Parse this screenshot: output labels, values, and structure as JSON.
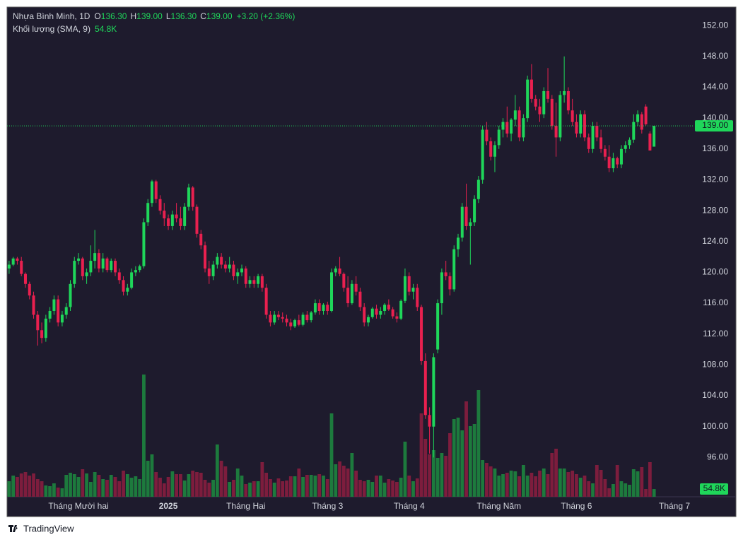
{
  "chart_data": {
    "type": "candlestick",
    "title": "Nhựa Bình Minh, 1D",
    "ohlc_legend": [
      {
        "key": "O",
        "value": 136.3,
        "label": "136.30"
      },
      {
        "key": "H",
        "value": 139.0,
        "label": "139.00"
      },
      {
        "key": "L",
        "value": 136.3,
        "label": "136.30"
      },
      {
        "key": "C",
        "value": 139.0,
        "label": "139.00"
      }
    ],
    "change": {
      "value": 3.2,
      "percent": 2.36,
      "label": "+3.20 (+2.36%)"
    },
    "volume_legend": {
      "name": "Khối lượng (SMA, 9)",
      "value": 54800,
      "label": "54.8K"
    },
    "last_price": {
      "value": 139.0,
      "label": "139.00"
    },
    "up_color": "#1fd65a",
    "down_color": "#e9204f",
    "volume_up_color": "#1d7a3d",
    "volume_down_color": "#7d1d3d",
    "grid": false,
    "xlim": [
      -0.5,
      167.5
    ],
    "xticks": [
      {
        "value": 17,
        "label": "Tháng Mười hai"
      },
      {
        "value": 39,
        "label": "2025"
      },
      {
        "value": 58,
        "label": "Tháng Hai"
      },
      {
        "value": 78,
        "label": "Tháng 3"
      },
      {
        "value": 98,
        "label": "Tháng 4"
      },
      {
        "value": 120,
        "label": "Tháng Năm"
      },
      {
        "value": 139,
        "label": "Tháng 6"
      },
      {
        "value": 163,
        "label": "Tháng 7"
      }
    ],
    "ylim": [
      90.9,
      154.4
    ],
    "yticks": [
      {
        "value": 96,
        "label": "96.00"
      },
      {
        "value": 100,
        "label": "100.00"
      },
      {
        "value": 104,
        "label": "104.00"
      },
      {
        "value": 108,
        "label": "108.00"
      },
      {
        "value": 112,
        "label": "112.00"
      },
      {
        "value": 116,
        "label": "116.00"
      },
      {
        "value": 120,
        "label": "120.00"
      },
      {
        "value": 124,
        "label": "124.00"
      },
      {
        "value": 128,
        "label": "128.00"
      },
      {
        "value": 132,
        "label": "132.00"
      },
      {
        "value": 136,
        "label": "136.00"
      },
      {
        "value": 140,
        "label": "140.00"
      },
      {
        "value": 144,
        "label": "144.00"
      },
      {
        "value": 148,
        "label": "148.00"
      },
      {
        "value": 152,
        "label": "152.00"
      }
    ],
    "y2lim": [
      0,
      1000000
    ],
    "ohlc": [
      [
        120.5,
        121.5,
        119.8,
        121.0
      ],
      [
        121.0,
        122.0,
        120.8,
        121.8
      ],
      [
        121.8,
        122.0,
        121.0,
        121.5
      ],
      [
        121.5,
        122.0,
        119.5,
        119.8
      ],
      [
        119.8,
        120.0,
        118.0,
        118.5
      ],
      [
        118.5,
        118.8,
        116.5,
        117.0
      ],
      [
        117.0,
        117.5,
        114.0,
        114.5
      ],
      [
        114.5,
        115.0,
        110.5,
        112.5
      ],
      [
        112.5,
        113.5,
        110.8,
        111.5
      ],
      [
        111.5,
        114.5,
        111.0,
        114.0
      ],
      [
        114.0,
        115.5,
        113.5,
        115.0
      ],
      [
        115.0,
        117.0,
        114.5,
        116.5
      ],
      [
        116.5,
        117.0,
        113.0,
        113.5
      ],
      [
        113.5,
        115.0,
        113.0,
        114.5
      ],
      [
        114.5,
        116.0,
        114.0,
        115.5
      ],
      [
        115.5,
        119.0,
        115.0,
        118.5
      ],
      [
        118.5,
        122.0,
        118.0,
        121.5
      ],
      [
        121.5,
        122.5,
        121.0,
        121.8
      ],
      [
        121.8,
        122.0,
        119.0,
        119.5
      ],
      [
        119.5,
        120.5,
        118.5,
        120.0
      ],
      [
        120.0,
        123.5,
        119.5,
        121.5
      ],
      [
        121.5,
        125.5,
        120.5,
        122.5
      ],
      [
        122.5,
        123.0,
        120.0,
        120.5
      ],
      [
        120.5,
        122.5,
        120.0,
        121.8
      ],
      [
        121.8,
        122.0,
        120.0,
        120.3
      ],
      [
        120.3,
        121.8,
        120.0,
        121.5
      ],
      [
        121.5,
        121.8,
        119.5,
        120.0
      ],
      [
        120.0,
        120.5,
        118.5,
        119.0
      ],
      [
        119.0,
        119.5,
        117.0,
        117.5
      ],
      [
        117.5,
        118.5,
        117.0,
        118.0
      ],
      [
        118.0,
        120.5,
        117.8,
        120.0
      ],
      [
        120.0,
        120.8,
        119.5,
        120.3
      ],
      [
        120.3,
        121.0,
        120.0,
        120.8
      ],
      [
        120.8,
        127.0,
        120.5,
        126.5
      ],
      [
        126.5,
        129.5,
        126.0,
        129.0
      ],
      [
        129.0,
        132.0,
        128.5,
        131.8
      ],
      [
        131.8,
        132.0,
        129.0,
        129.5
      ],
      [
        129.5,
        130.0,
        127.5,
        128.0
      ],
      [
        128.0,
        129.0,
        126.0,
        127.0
      ],
      [
        127.0,
        127.5,
        125.5,
        126.0
      ],
      [
        126.0,
        128.0,
        125.5,
        127.5
      ],
      [
        127.5,
        129.0,
        126.5,
        127.0
      ],
      [
        127.0,
        128.5,
        125.5,
        126.0
      ],
      [
        126.0,
        129.0,
        125.5,
        128.5
      ],
      [
        128.5,
        131.5,
        128.0,
        131.0
      ],
      [
        131.0,
        131.2,
        128.0,
        128.5
      ],
      [
        128.5,
        128.8,
        124.5,
        125.0
      ],
      [
        125.0,
        125.5,
        123.0,
        123.5
      ],
      [
        123.5,
        124.0,
        120.0,
        120.5
      ],
      [
        120.5,
        121.5,
        118.5,
        119.5
      ],
      [
        119.5,
        121.5,
        119.0,
        121.0
      ],
      [
        121.0,
        122.5,
        120.5,
        122.0
      ],
      [
        122.0,
        122.5,
        120.5,
        121.0
      ],
      [
        121.0,
        121.5,
        120.0,
        120.5
      ],
      [
        120.5,
        122.0,
        120.0,
        121.0
      ],
      [
        121.0,
        121.5,
        119.0,
        119.5
      ],
      [
        119.5,
        120.5,
        118.5,
        120.0
      ],
      [
        120.0,
        121.0,
        119.5,
        120.5
      ],
      [
        120.5,
        120.8,
        118.0,
        118.5
      ],
      [
        118.5,
        119.5,
        118.0,
        119.0
      ],
      [
        119.0,
        119.5,
        118.0,
        118.5
      ],
      [
        118.5,
        119.8,
        118.0,
        119.5
      ],
      [
        119.5,
        119.8,
        117.5,
        118.0
      ],
      [
        118.0,
        118.5,
        114.0,
        114.5
      ],
      [
        114.5,
        115.0,
        113.0,
        113.5
      ],
      [
        113.5,
        115.0,
        113.2,
        114.5
      ],
      [
        114.5,
        115.0,
        113.8,
        114.2
      ],
      [
        114.2,
        114.8,
        113.5,
        114.0
      ],
      [
        114.0,
        114.5,
        113.0,
        113.5
      ],
      [
        113.5,
        114.0,
        112.5,
        113.0
      ],
      [
        113.0,
        114.0,
        112.8,
        113.8
      ],
      [
        113.8,
        114.5,
        113.0,
        113.2
      ],
      [
        113.2,
        114.8,
        113.0,
        114.5
      ],
      [
        114.5,
        115.0,
        113.5,
        113.8
      ],
      [
        113.8,
        115.0,
        113.5,
        114.8
      ],
      [
        114.8,
        116.5,
        114.5,
        116.0
      ],
      [
        116.0,
        116.5,
        114.5,
        115.0
      ],
      [
        115.0,
        116.0,
        114.5,
        115.8
      ],
      [
        115.8,
        116.2,
        114.5,
        115.0
      ],
      [
        115.0,
        120.5,
        114.8,
        120.0
      ],
      [
        120.0,
        120.8,
        119.5,
        120.5
      ],
      [
        120.5,
        122.0,
        119.5,
        119.8
      ],
      [
        119.8,
        120.0,
        117.5,
        118.0
      ],
      [
        118.0,
        119.5,
        115.5,
        116.0
      ],
      [
        116.0,
        119.0,
        115.8,
        118.5
      ],
      [
        118.5,
        119.5,
        117.0,
        117.5
      ],
      [
        117.5,
        118.0,
        115.0,
        115.5
      ],
      [
        115.5,
        116.0,
        113.0,
        113.5
      ],
      [
        113.5,
        114.5,
        113.0,
        114.2
      ],
      [
        114.2,
        115.5,
        114.0,
        115.3
      ],
      [
        115.3,
        115.8,
        114.0,
        114.5
      ],
      [
        114.5,
        115.5,
        114.0,
        115.0
      ],
      [
        115.0,
        116.0,
        114.5,
        115.8
      ],
      [
        115.8,
        116.5,
        115.0,
        115.2
      ],
      [
        115.2,
        115.5,
        114.0,
        114.3
      ],
      [
        114.3,
        114.8,
        113.5,
        114.0
      ],
      [
        114.0,
        116.5,
        113.8,
        116.3
      ],
      [
        116.3,
        120.5,
        116.0,
        119.5
      ],
      [
        119.5,
        120.0,
        117.0,
        117.5
      ],
      [
        117.5,
        118.5,
        116.5,
        118.0
      ],
      [
        118.0,
        118.5,
        115.0,
        115.5
      ],
      [
        115.5,
        115.8,
        108.0,
        108.5
      ],
      [
        108.5,
        109.5,
        101.0,
        101.5
      ],
      [
        101.5,
        102.5,
        96.5,
        100.0
      ],
      [
        100.0,
        109.5,
        96.0,
        109.0
      ],
      [
        110.0,
        116.5,
        109.5,
        116.0
      ],
      [
        116.0,
        120.5,
        114.5,
        120.0
      ],
      [
        120.0,
        121.5,
        119.0,
        119.5
      ],
      [
        119.5,
        120.0,
        117.0,
        117.8
      ],
      [
        117.8,
        123.5,
        117.5,
        123.0
      ],
      [
        123.0,
        125.0,
        122.0,
        124.5
      ],
      [
        124.5,
        129.0,
        124.0,
        128.5
      ],
      [
        128.5,
        131.5,
        125.5,
        126.0
      ],
      [
        126.0,
        127.0,
        121.0,
        126.5
      ],
      [
        126.5,
        130.0,
        126.0,
        129.5
      ],
      [
        129.5,
        132.5,
        129.0,
        132.0
      ],
      [
        132.0,
        139.0,
        131.5,
        138.5
      ],
      [
        138.5,
        139.5,
        136.5,
        137.0
      ],
      [
        137.0,
        137.5,
        134.5,
        135.0
      ],
      [
        135.0,
        137.0,
        133.0,
        136.5
      ],
      [
        136.5,
        139.0,
        136.0,
        138.5
      ],
      [
        138.5,
        140.0,
        137.5,
        139.5
      ],
      [
        139.5,
        141.5,
        137.5,
        138.0
      ],
      [
        138.0,
        140.0,
        137.0,
        139.8
      ],
      [
        139.8,
        143.0,
        139.0,
        141.0
      ],
      [
        141.0,
        141.5,
        137.0,
        137.5
      ],
      [
        137.5,
        140.5,
        137.0,
        140.0
      ],
      [
        140.0,
        145.5,
        139.5,
        145.0
      ],
      [
        145.0,
        147.0,
        142.0,
        142.5
      ],
      [
        142.5,
        143.0,
        141.0,
        141.5
      ],
      [
        141.5,
        142.5,
        139.5,
        140.5
      ],
      [
        140.5,
        144.0,
        140.0,
        143.5
      ],
      [
        143.5,
        146.5,
        142.0,
        142.5
      ],
      [
        142.5,
        143.0,
        138.5,
        139.0
      ],
      [
        139.0,
        142.0,
        135.0,
        137.5
      ],
      [
        137.5,
        143.5,
        137.0,
        143.0
      ],
      [
        143.0,
        148.0,
        142.0,
        143.5
      ],
      [
        143.5,
        144.0,
        140.5,
        141.0
      ],
      [
        141.0,
        142.5,
        139.0,
        139.5
      ],
      [
        139.5,
        140.5,
        137.5,
        138.0
      ],
      [
        138.0,
        141.0,
        137.5,
        140.5
      ],
      [
        140.5,
        141.0,
        137.0,
        137.5
      ],
      [
        137.5,
        138.0,
        135.5,
        136.0
      ],
      [
        136.0,
        139.5,
        135.5,
        139.0
      ],
      [
        139.0,
        139.5,
        137.0,
        137.5
      ],
      [
        137.5,
        138.5,
        135.5,
        136.0
      ],
      [
        136.0,
        136.5,
        134.5,
        135.0
      ],
      [
        135.0,
        136.5,
        133.0,
        133.5
      ],
      [
        133.5,
        135.5,
        133.0,
        134.8
      ],
      [
        134.8,
        135.0,
        133.5,
        134.0
      ],
      [
        134.0,
        136.5,
        133.5,
        136.0
      ],
      [
        136.0,
        137.0,
        135.5,
        136.5
      ],
      [
        136.5,
        137.5,
        136.0,
        137.2
      ],
      [
        137.2,
        140.5,
        136.8,
        139.5
      ],
      [
        139.5,
        141.0,
        139.0,
        140.5
      ],
      [
        140.5,
        140.8,
        138.0,
        138.5
      ],
      [
        141.5,
        141.8,
        139.0,
        139.2
      ],
      [
        138.0,
        138.3,
        135.8,
        135.8
      ],
      [
        136.3,
        139.0,
        136.3,
        139.0
      ]
    ],
    "volume": [
      110000,
      150000,
      140000,
      165000,
      175000,
      150000,
      165000,
      125000,
      110000,
      80000,
      75000,
      95000,
      65000,
      60000,
      155000,
      170000,
      160000,
      140000,
      195000,
      165000,
      105000,
      175000,
      155000,
      125000,
      120000,
      155000,
      140000,
      110000,
      185000,
      160000,
      135000,
      145000,
      125000,
      865000,
      255000,
      300000,
      175000,
      135000,
      95000,
      140000,
      180000,
      160000,
      160000,
      115000,
      160000,
      185000,
      175000,
      170000,
      120000,
      100000,
      120000,
      370000,
      255000,
      215000,
      105000,
      120000,
      200000,
      150000,
      90000,
      100000,
      110000,
      110000,
      245000,
      170000,
      125000,
      100000,
      130000,
      110000,
      115000,
      145000,
      145000,
      200000,
      140000,
      155000,
      155000,
      150000,
      160000,
      150000,
      125000,
      590000,
      230000,
      250000,
      220000,
      200000,
      310000,
      185000,
      120000,
      110000,
      120000,
      105000,
      150000,
      150000,
      100000,
      125000,
      115000,
      105000,
      135000,
      390000,
      150000,
      110000,
      130000,
      590000,
      410000,
      300000,
      330000,
      275000,
      310000,
      290000,
      450000,
      550000,
      560000,
      470000,
      675000,
      500000,
      515000,
      755000,
      260000,
      240000,
      215000,
      200000,
      150000,
      160000,
      170000,
      185000,
      180000,
      145000,
      225000,
      150000,
      170000,
      145000,
      185000,
      200000,
      160000,
      310000,
      340000,
      200000,
      200000,
      175000,
      185000,
      160000,
      135000,
      150000,
      110000,
      95000,
      225000,
      190000,
      125000,
      60000,
      90000,
      225000,
      110000,
      95000,
      85000,
      195000,
      180000,
      210000,
      55000,
      245000,
      54800
    ]
  },
  "brand": "TradingView"
}
